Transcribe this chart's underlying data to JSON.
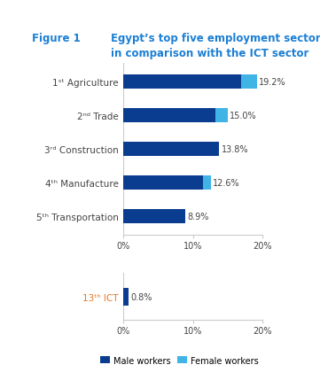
{
  "title_figure": "Figure 1",
  "title_main": "Egypt’s top five employment sectors\nin comparison with the ICT sector",
  "title_color": "#1b7fd4",
  "sectors": [
    "1ˢᵗ Agriculture",
    "2ⁿᵈ Trade",
    "3ʳᵈ Construction",
    "4ᵗʰ Manufacture",
    "5ᵗʰ Transportation"
  ],
  "male_values": [
    17.0,
    13.3,
    13.8,
    11.5,
    8.9
  ],
  "female_values": [
    2.2,
    1.7,
    0.0,
    1.1,
    0.0
  ],
  "total_labels": [
    "19.2%",
    "15.0%",
    "13.8%",
    "12.6%",
    "8.9%"
  ],
  "ict_sector": "13ᵗʰ ICT",
  "ict_male": 0.8,
  "ict_female": 0.0,
  "ict_label": "0.8%",
  "male_color": "#0a3d8f",
  "female_color": "#40b4e5",
  "xlim": [
    0,
    20
  ],
  "xticks": [
    0,
    10,
    20
  ],
  "xticklabels": [
    "0%",
    "10%",
    "20%"
  ],
  "legend_male": "Male workers",
  "legend_female": "Female workers",
  "bar_height": 0.42,
  "background_color": "#ffffff",
  "label_color": "#444444",
  "ict_label_color": "#e87722",
  "yticklabel_color": "#444444",
  "axis_color": "#cccccc"
}
